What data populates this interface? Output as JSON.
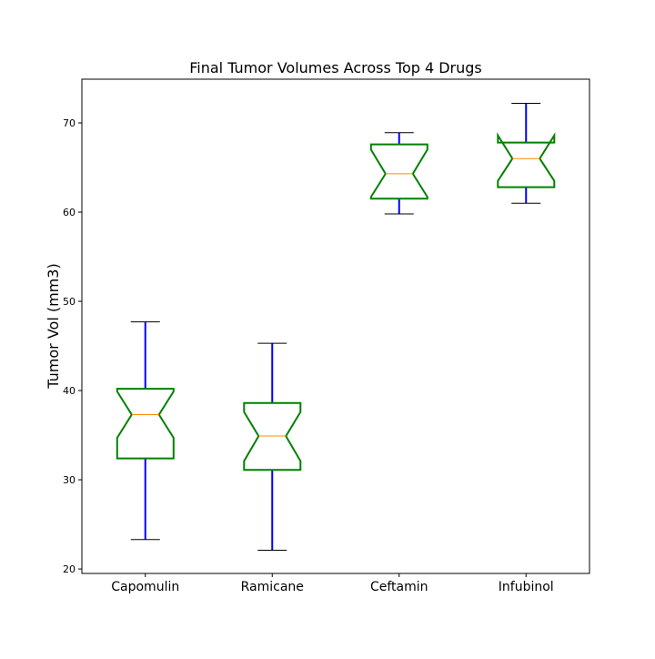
{
  "chart_data": {
    "type": "boxplot",
    "title": "Final Tumor Volumes Across Top 4 Drugs",
    "xlabel": "",
    "ylabel": "Tumor Vol (mm3)",
    "ylim": [
      19.5,
      74.9
    ],
    "yticks": [
      20,
      30,
      40,
      50,
      60,
      70
    ],
    "categories": [
      "Capomulin",
      "Ramicane",
      "Ceftamin",
      "Infubinol"
    ],
    "boxes": [
      {
        "whislo": 23.3,
        "q1": 32.4,
        "med": 37.3,
        "q3": 40.2,
        "whishi": 47.7,
        "notch_lo": 34.7,
        "notch_hi": 39.9
      },
      {
        "whislo": 22.1,
        "q1": 31.1,
        "med": 34.9,
        "q3": 38.6,
        "whishi": 45.3,
        "notch_lo": 32.1,
        "notch_hi": 37.6
      },
      {
        "whislo": 59.8,
        "q1": 61.5,
        "med": 64.3,
        "q3": 67.6,
        "whishi": 68.9,
        "notch_lo": 61.7,
        "notch_hi": 67.0
      },
      {
        "whislo": 61.0,
        "q1": 62.8,
        "med": 66.0,
        "q3": 67.8,
        "whishi": 72.2,
        "notch_lo": 63.5,
        "notch_hi": 68.6
      }
    ],
    "notched": true,
    "grid": false,
    "colors": {
      "box": "#008000",
      "whisker": "#0000ff",
      "cap": "#000000",
      "median": "#ff8c00",
      "axis": "#000000"
    }
  }
}
